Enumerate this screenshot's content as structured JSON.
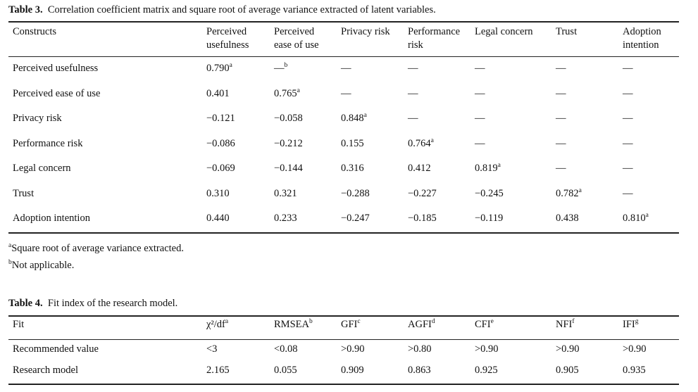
{
  "table3": {
    "label": "Table 3.",
    "caption": "Correlation coefficient matrix and square root of average variance extracted of latent variables.",
    "headers": [
      {
        "line1": "Constructs",
        "line2": ""
      },
      {
        "line1": "Perceived",
        "line2": "usefulness"
      },
      {
        "line1": "Perceived",
        "line2": "ease of use"
      },
      {
        "line1": "Privacy risk",
        "line2": ""
      },
      {
        "line1": "Performance",
        "line2": "risk"
      },
      {
        "line1": "Legal concern",
        "line2": ""
      },
      {
        "line1": "Trust",
        "line2": ""
      },
      {
        "line1": "Adoption",
        "line2": "intention"
      }
    ],
    "rows": [
      {
        "name": "Perceived usefulness",
        "cells": [
          {
            "v": "0.790",
            "s": "a"
          },
          {
            "v": "—",
            "s": "b"
          },
          {
            "v": "—",
            "s": ""
          },
          {
            "v": "—",
            "s": ""
          },
          {
            "v": "—",
            "s": ""
          },
          {
            "v": "—",
            "s": ""
          },
          {
            "v": "—",
            "s": ""
          }
        ]
      },
      {
        "name": "Perceived ease of use",
        "cells": [
          {
            "v": "0.401",
            "s": ""
          },
          {
            "v": "0.765",
            "s": "a"
          },
          {
            "v": "—",
            "s": ""
          },
          {
            "v": "—",
            "s": ""
          },
          {
            "v": "—",
            "s": ""
          },
          {
            "v": "—",
            "s": ""
          },
          {
            "v": "—",
            "s": ""
          }
        ]
      },
      {
        "name": "Privacy risk",
        "cells": [
          {
            "v": "−0.121",
            "s": ""
          },
          {
            "v": "−0.058",
            "s": ""
          },
          {
            "v": "0.848",
            "s": "a"
          },
          {
            "v": "—",
            "s": ""
          },
          {
            "v": "—",
            "s": ""
          },
          {
            "v": "—",
            "s": ""
          },
          {
            "v": "—",
            "s": ""
          }
        ]
      },
      {
        "name": "Performance risk",
        "cells": [
          {
            "v": "−0.086",
            "s": ""
          },
          {
            "v": "−0.212",
            "s": ""
          },
          {
            "v": "0.155",
            "s": ""
          },
          {
            "v": "0.764",
            "s": "a"
          },
          {
            "v": "—",
            "s": ""
          },
          {
            "v": "—",
            "s": ""
          },
          {
            "v": "—",
            "s": ""
          }
        ]
      },
      {
        "name": "Legal concern",
        "cells": [
          {
            "v": "−0.069",
            "s": ""
          },
          {
            "v": "−0.144",
            "s": ""
          },
          {
            "v": "0.316",
            "s": ""
          },
          {
            "v": "0.412",
            "s": ""
          },
          {
            "v": "0.819",
            "s": "a"
          },
          {
            "v": "—",
            "s": ""
          },
          {
            "v": "—",
            "s": ""
          }
        ]
      },
      {
        "name": "Trust",
        "cells": [
          {
            "v": "0.310",
            "s": ""
          },
          {
            "v": "0.321",
            "s": ""
          },
          {
            "v": "−0.288",
            "s": ""
          },
          {
            "v": "−0.227",
            "s": ""
          },
          {
            "v": "−0.245",
            "s": ""
          },
          {
            "v": "0.782",
            "s": "a"
          },
          {
            "v": "—",
            "s": ""
          }
        ]
      },
      {
        "name": "Adoption intention",
        "cells": [
          {
            "v": "0.440",
            "s": ""
          },
          {
            "v": "0.233",
            "s": ""
          },
          {
            "v": "−0.247",
            "s": ""
          },
          {
            "v": "−0.185",
            "s": ""
          },
          {
            "v": "−0.119",
            "s": ""
          },
          {
            "v": "0.438",
            "s": ""
          },
          {
            "v": "0.810",
            "s": "a"
          }
        ]
      }
    ],
    "footnotes": [
      {
        "mark": "a",
        "text": "Square root of average variance extracted."
      },
      {
        "mark": "b",
        "text": "Not applicable."
      }
    ]
  },
  "table4": {
    "label": "Table 4.",
    "caption": "Fit index of the research model.",
    "headers": [
      {
        "text": "Fit",
        "sup": ""
      },
      {
        "text": "χ²/df",
        "sup": "a"
      },
      {
        "text": "RMSEA",
        "sup": "b"
      },
      {
        "text": "GFI",
        "sup": "c"
      },
      {
        "text": "AGFI",
        "sup": "d"
      },
      {
        "text": "CFI",
        "sup": "e"
      },
      {
        "text": "NFI",
        "sup": "f"
      },
      {
        "text": "IFI",
        "sup": "g"
      }
    ],
    "rows": [
      {
        "name": "Recommended value",
        "cells": [
          "<3",
          "<0.08",
          ">0.90",
          ">0.80",
          ">0.90",
          ">0.90",
          ">0.90"
        ]
      },
      {
        "name": "Research model",
        "cells": [
          "2.165",
          "0.055",
          "0.909",
          "0.863",
          "0.925",
          "0.905",
          "0.935"
        ]
      }
    ]
  }
}
